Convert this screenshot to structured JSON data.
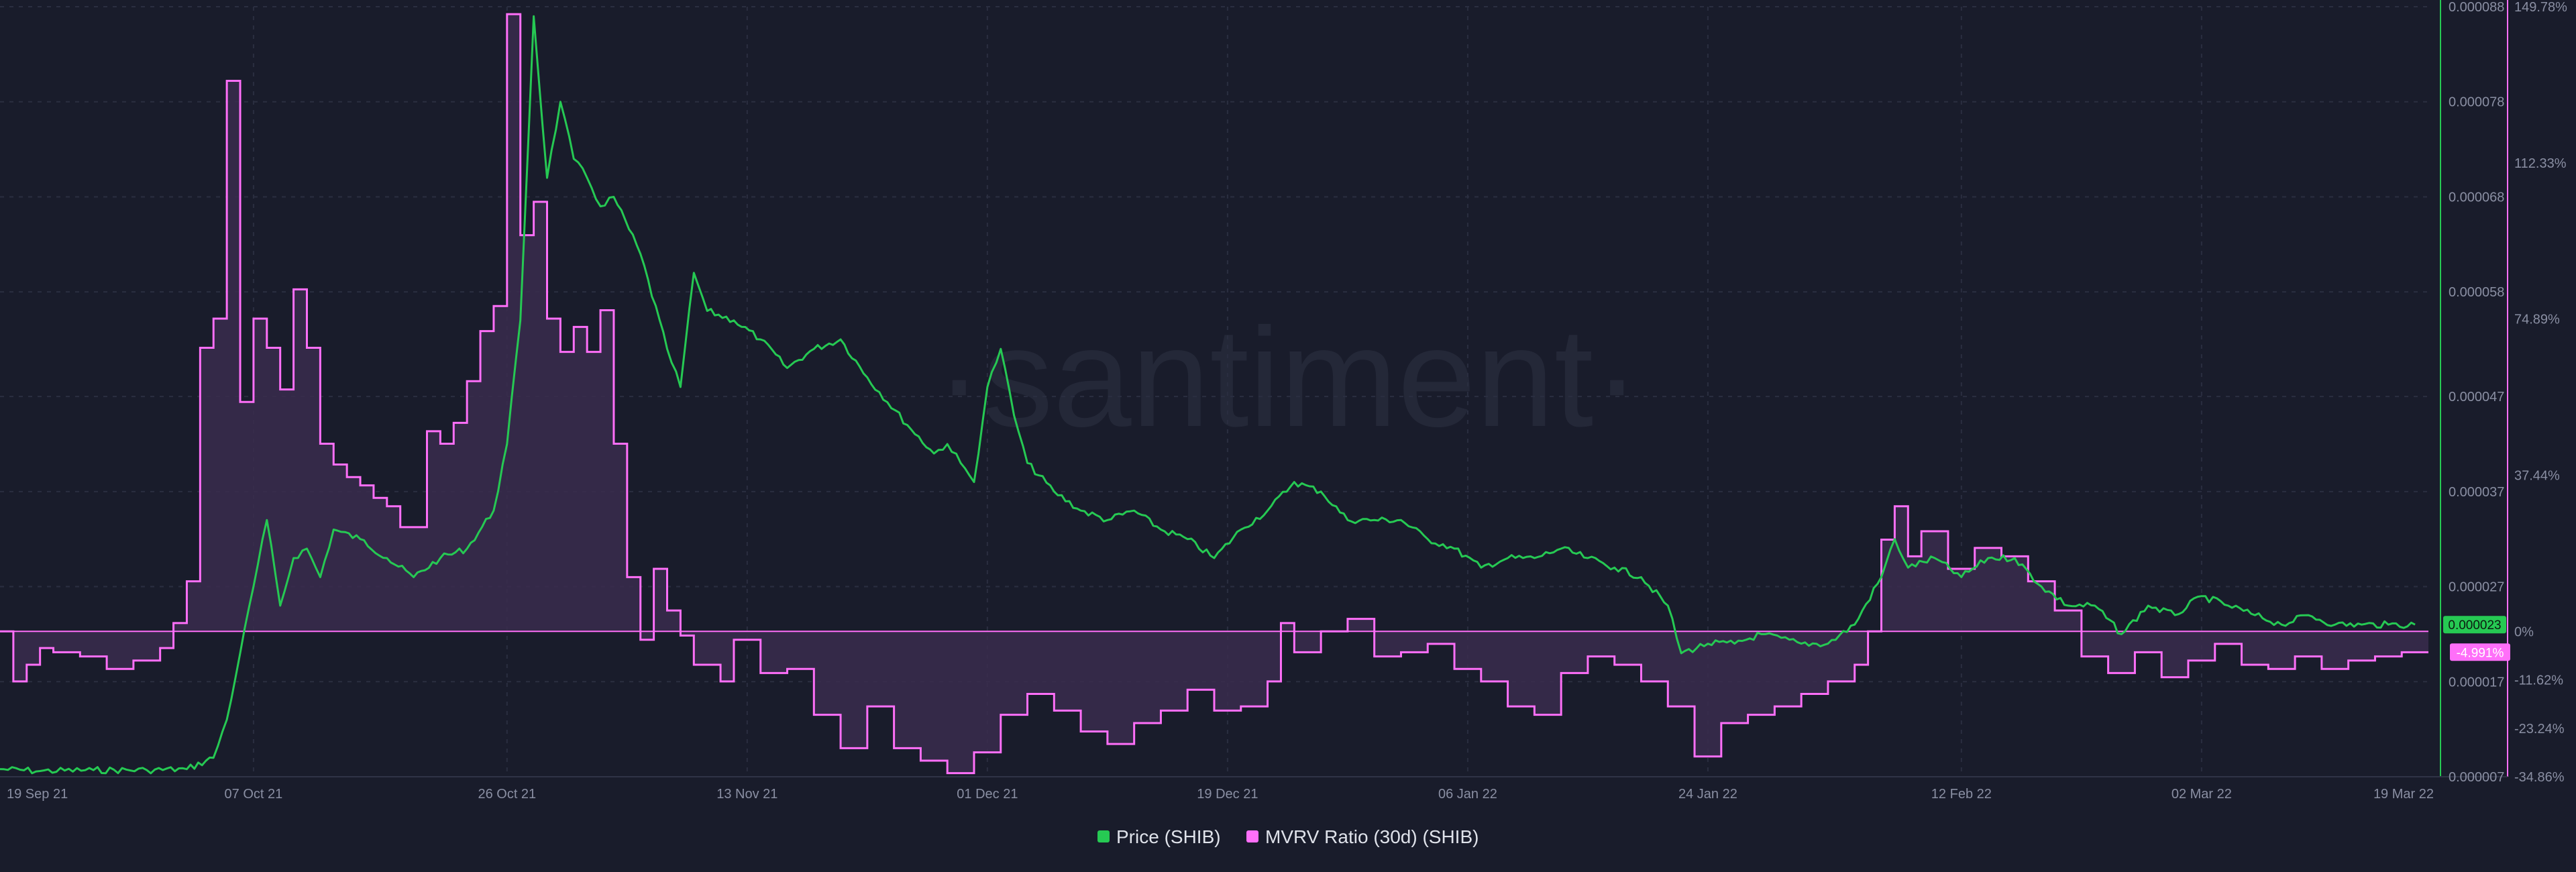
{
  "watermark": "·santiment·",
  "colors": {
    "background": "#191c2b",
    "price": "#26c953",
    "mvrv": "#ff6ff9",
    "mvrv_fill": "#3a2b4e",
    "grid": "#2a2e40",
    "axis_text": "#8a8fa3"
  },
  "chart_data": {
    "type": "line",
    "x_ticks": [
      "19 Sep 21",
      "07 Oct 21",
      "26 Oct 21",
      "13 Nov 21",
      "01 Dec 21",
      "19 Dec 21",
      "06 Jan 22",
      "24 Jan 22",
      "12 Feb 22",
      "02 Mar 22",
      "19 Mar 22"
    ],
    "x_range": [
      "2021-09-18",
      "2022-03-19"
    ],
    "grid": true,
    "legend_position": "bottom-center",
    "price_axis": {
      "side": "right",
      "ylim": [
        7e-06,
        8.8e-05
      ],
      "tick_labels": [
        "0.000088",
        "0.000078",
        "0.000068",
        "0.000058",
        "0.000047",
        "0.000037",
        "0.000027",
        "0.000017",
        "0.000007"
      ],
      "last_value_label": "0.000023"
    },
    "mvrv_axis": {
      "side": "right",
      "ylim": [
        -34.86,
        149.78
      ],
      "tick_labels": [
        "149.78%",
        "112.33%",
        "74.89%",
        "37.44%",
        "0%",
        "-11.62%",
        "-23.24%",
        "-34.86%"
      ],
      "last_value_label": "-4.991%"
    },
    "series": [
      {
        "name": "Price (SHIB)",
        "axis": "price",
        "style": "line",
        "points": [
          [
            "2021-09-18",
            7.8e-06
          ],
          [
            "2021-09-21",
            7.6e-06
          ],
          [
            "2021-09-25",
            7.7e-06
          ],
          [
            "2021-09-29",
            7.7e-06
          ],
          [
            "2021-10-02",
            7.8e-06
          ],
          [
            "2021-10-04",
            9e-06
          ],
          [
            "2021-10-05",
            1.3e-05
          ],
          [
            "2021-10-06",
            2e-05
          ],
          [
            "2021-10-07",
            2.7e-05
          ],
          [
            "2021-10-08",
            3.4e-05
          ],
          [
            "2021-10-09",
            2.5e-05
          ],
          [
            "2021-10-10",
            3e-05
          ],
          [
            "2021-10-11",
            3.1e-05
          ],
          [
            "2021-10-12",
            2.8e-05
          ],
          [
            "2021-10-13",
            3.3e-05
          ],
          [
            "2021-10-15",
            3.2e-05
          ],
          [
            "2021-10-17",
            3e-05
          ],
          [
            "2021-10-19",
            2.8e-05
          ],
          [
            "2021-10-21",
            3e-05
          ],
          [
            "2021-10-23",
            3.1e-05
          ],
          [
            "2021-10-25",
            3.5e-05
          ],
          [
            "2021-10-26",
            4.2e-05
          ],
          [
            "2021-10-27",
            5.5e-05
          ],
          [
            "2021-10-28",
            8.7e-05
          ],
          [
            "2021-10-29",
            7e-05
          ],
          [
            "2021-10-30",
            7.8e-05
          ],
          [
            "2021-10-31",
            7.2e-05
          ],
          [
            "2021-11-01",
            7e-05
          ],
          [
            "2021-11-02",
            6.7e-05
          ],
          [
            "2021-11-03",
            6.8e-05
          ],
          [
            "2021-11-05",
            6.2e-05
          ],
          [
            "2021-11-07",
            5.2e-05
          ],
          [
            "2021-11-08",
            4.8e-05
          ],
          [
            "2021-11-09",
            6e-05
          ],
          [
            "2021-11-10",
            5.6e-05
          ],
          [
            "2021-11-12",
            5.5e-05
          ],
          [
            "2021-11-14",
            5.3e-05
          ],
          [
            "2021-11-16",
            5e-05
          ],
          [
            "2021-11-18",
            5.2e-05
          ],
          [
            "2021-11-20",
            5.3e-05
          ],
          [
            "2021-11-22",
            4.9e-05
          ],
          [
            "2021-11-25",
            4.4e-05
          ],
          [
            "2021-11-27",
            4.1e-05
          ],
          [
            "2021-11-28",
            4.2e-05
          ],
          [
            "2021-11-29",
            4e-05
          ],
          [
            "2021-11-30",
            3.8e-05
          ],
          [
            "2021-12-01",
            4.8e-05
          ],
          [
            "2021-12-02",
            5.2e-05
          ],
          [
            "2021-12-03",
            4.5e-05
          ],
          [
            "2021-12-04",
            4e-05
          ],
          [
            "2021-12-06",
            3.7e-05
          ],
          [
            "2021-12-08",
            3.5e-05
          ],
          [
            "2021-12-10",
            3.4e-05
          ],
          [
            "2021-12-12",
            3.5e-05
          ],
          [
            "2021-12-14",
            3.3e-05
          ],
          [
            "2021-12-16",
            3.2e-05
          ],
          [
            "2021-12-18",
            3e-05
          ],
          [
            "2021-12-20",
            3.3e-05
          ],
          [
            "2021-12-22",
            3.5e-05
          ],
          [
            "2021-12-24",
            3.8e-05
          ],
          [
            "2021-12-26",
            3.7e-05
          ],
          [
            "2021-12-28",
            3.4e-05
          ],
          [
            "2021-12-30",
            3.4e-05
          ],
          [
            "2022-01-01",
            3.4e-05
          ],
          [
            "2022-01-03",
            3.2e-05
          ],
          [
            "2022-01-05",
            3.1e-05
          ],
          [
            "2022-01-07",
            2.9e-05
          ],
          [
            "2022-01-09",
            3e-05
          ],
          [
            "2022-01-11",
            3e-05
          ],
          [
            "2022-01-13",
            3.1e-05
          ],
          [
            "2022-01-15",
            3e-05
          ],
          [
            "2022-01-17",
            2.9e-05
          ],
          [
            "2022-01-19",
            2.8e-05
          ],
          [
            "2022-01-21",
            2.5e-05
          ],
          [
            "2022-01-22",
            2e-05
          ],
          [
            "2022-01-24",
            2.1e-05
          ],
          [
            "2022-01-26",
            2.1e-05
          ],
          [
            "2022-01-28",
            2.2e-05
          ],
          [
            "2022-01-31",
            2.1e-05
          ],
          [
            "2022-02-02",
            2.1e-05
          ],
          [
            "2022-02-04",
            2.3e-05
          ],
          [
            "2022-02-06",
            2.8e-05
          ],
          [
            "2022-02-07",
            3.2e-05
          ],
          [
            "2022-02-08",
            2.9e-05
          ],
          [
            "2022-02-10",
            3e-05
          ],
          [
            "2022-02-12",
            2.8e-05
          ],
          [
            "2022-02-14",
            3e-05
          ],
          [
            "2022-02-16",
            3e-05
          ],
          [
            "2022-02-18",
            2.7e-05
          ],
          [
            "2022-02-20",
            2.5e-05
          ],
          [
            "2022-02-22",
            2.5e-05
          ],
          [
            "2022-02-24",
            2.2e-05
          ],
          [
            "2022-02-26",
            2.5e-05
          ],
          [
            "2022-02-28",
            2.4e-05
          ],
          [
            "2022-03-02",
            2.6e-05
          ],
          [
            "2022-03-04",
            2.5e-05
          ],
          [
            "2022-03-06",
            2.4e-05
          ],
          [
            "2022-03-08",
            2.3e-05
          ],
          [
            "2022-03-10",
            2.4e-05
          ],
          [
            "2022-03-12",
            2.3e-05
          ],
          [
            "2022-03-14",
            2.3e-05
          ],
          [
            "2022-03-16",
            2.3e-05
          ],
          [
            "2022-03-18",
            2.3e-05
          ]
        ]
      },
      {
        "name": "MVRV Ratio (30d) (SHIB)",
        "axis": "mvrv",
        "style": "step-area",
        "points": [
          [
            "2021-09-18",
            0
          ],
          [
            "2021-09-19",
            -12
          ],
          [
            "2021-09-20",
            -8
          ],
          [
            "2021-09-21",
            -4
          ],
          [
            "2021-09-22",
            -5
          ],
          [
            "2021-09-24",
            -6
          ],
          [
            "2021-09-26",
            -9
          ],
          [
            "2021-09-28",
            -7
          ],
          [
            "2021-09-30",
            -4
          ],
          [
            "2021-10-01",
            2
          ],
          [
            "2021-10-02",
            12
          ],
          [
            "2021-10-03",
            68
          ],
          [
            "2021-10-04",
            75
          ],
          [
            "2021-10-05",
            132
          ],
          [
            "2021-10-06",
            55
          ],
          [
            "2021-10-07",
            75
          ],
          [
            "2021-10-08",
            68
          ],
          [
            "2021-10-09",
            58
          ],
          [
            "2021-10-10",
            82
          ],
          [
            "2021-10-11",
            68
          ],
          [
            "2021-10-12",
            45
          ],
          [
            "2021-10-13",
            40
          ],
          [
            "2021-10-14",
            37
          ],
          [
            "2021-10-15",
            35
          ],
          [
            "2021-10-16",
            32
          ],
          [
            "2021-10-17",
            30
          ],
          [
            "2021-10-18",
            25
          ],
          [
            "2021-10-19",
            25
          ],
          [
            "2021-10-20",
            48
          ],
          [
            "2021-10-21",
            45
          ],
          [
            "2021-10-22",
            50
          ],
          [
            "2021-10-23",
            60
          ],
          [
            "2021-10-24",
            72
          ],
          [
            "2021-10-25",
            78
          ],
          [
            "2021-10-26",
            148
          ],
          [
            "2021-10-27",
            95
          ],
          [
            "2021-10-28",
            103
          ],
          [
            "2021-10-29",
            75
          ],
          [
            "2021-10-30",
            67
          ],
          [
            "2021-10-31",
            73
          ],
          [
            "2021-11-01",
            67
          ],
          [
            "2021-11-02",
            77
          ],
          [
            "2021-11-03",
            45
          ],
          [
            "2021-11-04",
            13
          ],
          [
            "2021-11-05",
            -2
          ],
          [
            "2021-11-06",
            15
          ],
          [
            "2021-11-07",
            5
          ],
          [
            "2021-11-08",
            -1
          ],
          [
            "2021-11-09",
            -8
          ],
          [
            "2021-11-11",
            -12
          ],
          [
            "2021-11-12",
            -2
          ],
          [
            "2021-11-14",
            -10
          ],
          [
            "2021-11-16",
            -9
          ],
          [
            "2021-11-18",
            -20
          ],
          [
            "2021-11-20",
            -28
          ],
          [
            "2021-11-22",
            -18
          ],
          [
            "2021-11-24",
            -28
          ],
          [
            "2021-11-26",
            -31
          ],
          [
            "2021-11-28",
            -34
          ],
          [
            "2021-11-30",
            -29
          ],
          [
            "2021-12-02",
            -20
          ],
          [
            "2021-12-04",
            -15
          ],
          [
            "2021-12-06",
            -19
          ],
          [
            "2021-12-08",
            -24
          ],
          [
            "2021-12-10",
            -27
          ],
          [
            "2021-12-12",
            -22
          ],
          [
            "2021-12-14",
            -19
          ],
          [
            "2021-12-16",
            -14
          ],
          [
            "2021-12-18",
            -19
          ],
          [
            "2021-12-20",
            -18
          ],
          [
            "2021-12-22",
            -12
          ],
          [
            "2021-12-23",
            2
          ],
          [
            "2021-12-24",
            -5
          ],
          [
            "2021-12-26",
            0
          ],
          [
            "2021-12-28",
            3
          ],
          [
            "2021-12-30",
            -6
          ],
          [
            "2022-01-01",
            -5
          ],
          [
            "2022-01-03",
            -3
          ],
          [
            "2022-01-05",
            -9
          ],
          [
            "2022-01-07",
            -12
          ],
          [
            "2022-01-09",
            -18
          ],
          [
            "2022-01-11",
            -20
          ],
          [
            "2022-01-13",
            -10
          ],
          [
            "2022-01-15",
            -6
          ],
          [
            "2022-01-17",
            -8
          ],
          [
            "2022-01-19",
            -12
          ],
          [
            "2022-01-21",
            -18
          ],
          [
            "2022-01-23",
            -30
          ],
          [
            "2022-01-25",
            -22
          ],
          [
            "2022-01-27",
            -20
          ],
          [
            "2022-01-29",
            -18
          ],
          [
            "2022-01-31",
            -15
          ],
          [
            "2022-02-02",
            -12
          ],
          [
            "2022-02-04",
            -8
          ],
          [
            "2022-02-05",
            0
          ],
          [
            "2022-02-06",
            22
          ],
          [
            "2022-02-07",
            30
          ],
          [
            "2022-02-08",
            18
          ],
          [
            "2022-02-09",
            24
          ],
          [
            "2022-02-11",
            15
          ],
          [
            "2022-02-13",
            20
          ],
          [
            "2022-02-15",
            18
          ],
          [
            "2022-02-17",
            12
          ],
          [
            "2022-02-19",
            5
          ],
          [
            "2022-02-21",
            -6
          ],
          [
            "2022-02-23",
            -10
          ],
          [
            "2022-02-25",
            -5
          ],
          [
            "2022-02-27",
            -11
          ],
          [
            "2022-03-01",
            -7
          ],
          [
            "2022-03-03",
            -3
          ],
          [
            "2022-03-05",
            -8
          ],
          [
            "2022-03-07",
            -9
          ],
          [
            "2022-03-09",
            -6
          ],
          [
            "2022-03-11",
            -9
          ],
          [
            "2022-03-13",
            -7
          ],
          [
            "2022-03-15",
            -6
          ],
          [
            "2022-03-17",
            -5
          ]
        ]
      }
    ]
  },
  "legend": {
    "items": [
      {
        "label": "Price (SHIB)",
        "color": "#26c953"
      },
      {
        "label": "MVRV Ratio (30d) (SHIB)",
        "color": "#ff6ff9"
      }
    ]
  }
}
